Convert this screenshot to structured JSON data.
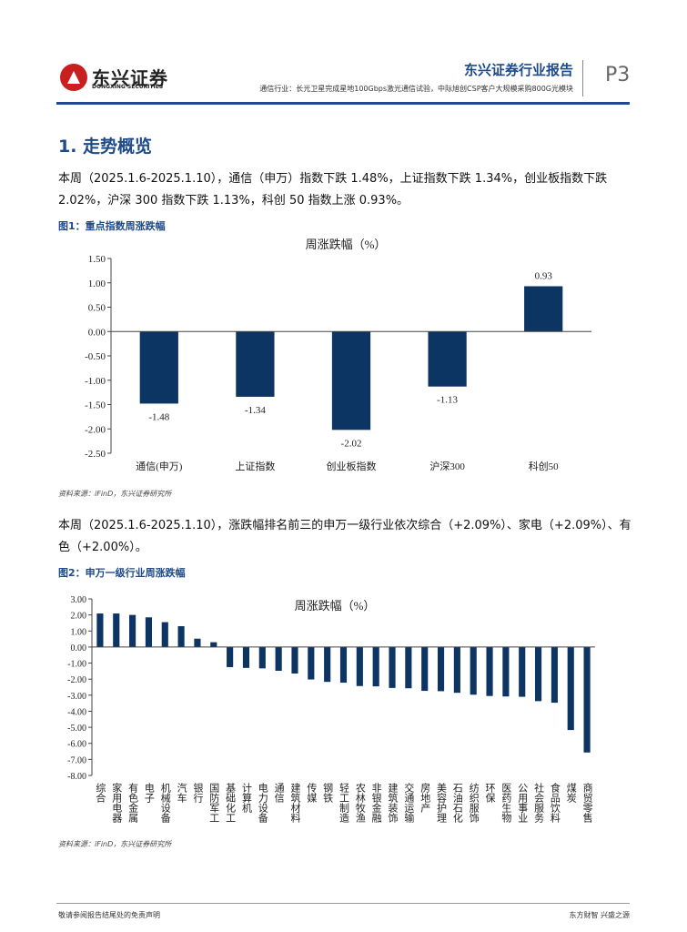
{
  "header": {
    "logo_cn": "东兴证券",
    "logo_en": "DONGXING SECURITIES",
    "title": "东兴证券行业报告",
    "subtitle": "通信行业：长光卫星完成星地100Gbps激光通信试验，中际旭创CSP客户大规模采购800G光模块",
    "page": "P3"
  },
  "section_title": "1. 走势概览",
  "para1": "本周（2025.1.6-2025.1.10），通信（申万）指数下跌 1.48%，上证指数下跌 1.34%，创业板指数下跌 2.02%，沪深 300 指数下跌 1.13%，科创 50 指数上涨 0.93%。",
  "fig1_caption": "图1：重点指数周涨跌幅",
  "fig1_source": "资料来源：iFinD，东兴证券研究所",
  "para2": "本周（2025.1.6-2025.1.10），涨跌幅排名前三的申万一级行业依次综合（+2.09%）、家电（+2.09%）、有色（+2.00%）。",
  "fig2_caption": "图2：申万一级行业周涨跌幅",
  "fig2_source": "资料来源：iFinD，东兴证券研究所",
  "footer": {
    "left": "敬请参阅报告结尾处的免责声明",
    "right": "东方财智 兴盛之源"
  },
  "chart_data": [
    {
      "type": "bar",
      "title": "周涨跌幅（%）",
      "categories": [
        "通信(申万)",
        "上证指数",
        "创业板指数",
        "沪深300",
        "科创50"
      ],
      "values": [
        -1.48,
        -1.34,
        -2.02,
        -1.13,
        0.93
      ],
      "ylim": [
        -2.5,
        1.5
      ],
      "yticks": [
        "1.50",
        "1.00",
        "0.50",
        "0.00",
        "-0.50",
        "-1.00",
        "-1.50",
        "-2.00",
        "-2.50"
      ],
      "data_labels": [
        "-1.48",
        "-1.34",
        "-2.02",
        "-1.13",
        "0.93"
      ],
      "color": "#0d3563",
      "grid": false
    },
    {
      "type": "bar",
      "title": "周涨跌幅（%）",
      "categories": [
        "综合",
        "家用电器",
        "有色金属",
        "电子",
        "机械设备",
        "汽车",
        "银行",
        "国防军工",
        "基础化工",
        "计算机",
        "电力设备",
        "通信",
        "建筑材料",
        "传媒",
        "钢铁",
        "轻工制造",
        "农林牧渔",
        "非银金融",
        "建筑装饰",
        "交通运输",
        "房地产",
        "美容护理",
        "石油石化",
        "纺织服饰",
        "环保",
        "医药生物",
        "公用事业",
        "社会服务",
        "食品饮料",
        "煤炭",
        "商贸零售"
      ],
      "values": [
        2.09,
        2.09,
        2.0,
        1.85,
        1.55,
        1.3,
        0.52,
        0.3,
        -1.25,
        -1.3,
        -1.33,
        -1.48,
        -1.65,
        -2.02,
        -2.17,
        -2.22,
        -2.43,
        -2.45,
        -2.55,
        -2.57,
        -2.73,
        -2.75,
        -2.85,
        -2.97,
        -3.05,
        -3.08,
        -3.1,
        -3.37,
        -3.47,
        -5.17,
        -6.57
      ],
      "ylim": [
        -8,
        3
      ],
      "yticks": [
        "3.00",
        "2.00",
        "1.00",
        "0.00",
        "-1.00",
        "-2.00",
        "-3.00",
        "-4.00",
        "-5.00",
        "-6.00",
        "-7.00",
        "-8.00"
      ],
      "color": "#0d3563",
      "grid": false
    }
  ]
}
